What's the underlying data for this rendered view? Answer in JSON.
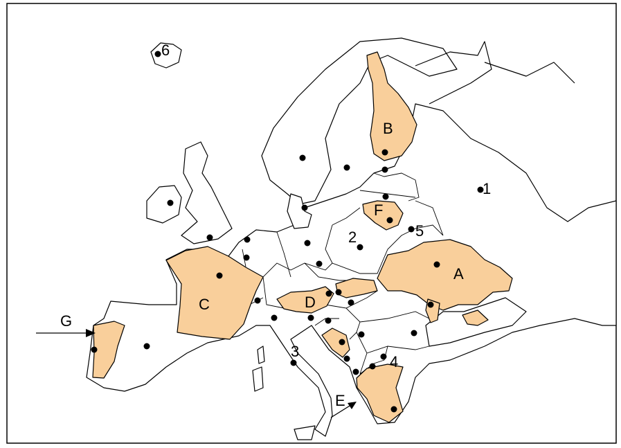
{
  "map": {
    "highlight_color": "#f9cf9b",
    "line_color": "#000000",
    "labels": {
      "six": "6",
      "b": "B",
      "one": "1",
      "f": "F",
      "five": "5",
      "two": "2",
      "a": "A",
      "c": "C",
      "d": "D",
      "g": "G",
      "three": "3",
      "four": "4",
      "e": "E"
    }
  }
}
